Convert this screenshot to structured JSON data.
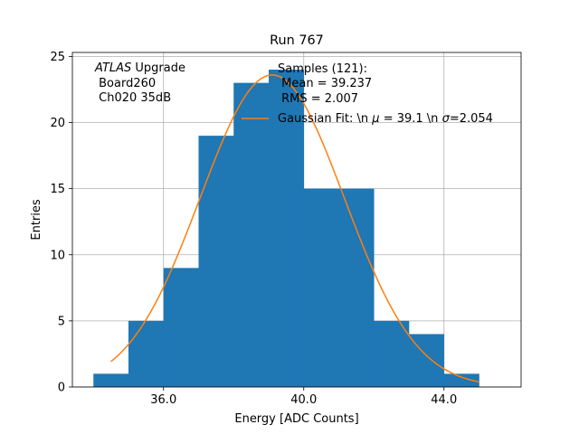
{
  "chart_data": {
    "type": "bar",
    "title": "Run 767",
    "xlabel": "Energy [ADC Counts]",
    "ylabel": "Entries",
    "xlim": [
      33.4,
      46.2
    ],
    "ylim": [
      0,
      25.3
    ],
    "grid": true,
    "bin_edges": [
      34,
      35,
      36,
      37,
      38,
      39,
      40,
      41,
      42,
      43,
      44,
      45
    ],
    "values": [
      1,
      5,
      9,
      19,
      23,
      24,
      15,
      15,
      5,
      4,
      1
    ],
    "xticks": [
      36,
      40,
      44
    ],
    "xtick_labels": [
      "36.0",
      "40.0",
      "44.0"
    ],
    "yticks": [
      0,
      5,
      10,
      15,
      20,
      25
    ],
    "ytick_labels": [
      "0",
      "5",
      "10",
      "15",
      "20",
      "25"
    ],
    "bar_color": "#1f77b4",
    "fit": {
      "name": "Gaussian Fit",
      "mu": 39.1,
      "sigma": 2.054,
      "amplitude": 23.6,
      "x_range": [
        34.5,
        45.0
      ],
      "color": "#ff7f0e"
    },
    "annotation_lines": [
      "ATLAS Upgrade",
      " Board260",
      " Ch020 35dB"
    ],
    "legend": {
      "position": "top-right",
      "samples_lines": [
        "Samples (121):",
        " Mean = 39.237",
        " RMS = 2.007"
      ],
      "fit_label_prefix": "Gaussian Fit: \\n ",
      "fit_label_mu": "μ",
      "fit_label_mid": " = 39.1 \\n ",
      "fit_label_sigma": "σ",
      "fit_label_end": "=2.054"
    }
  }
}
